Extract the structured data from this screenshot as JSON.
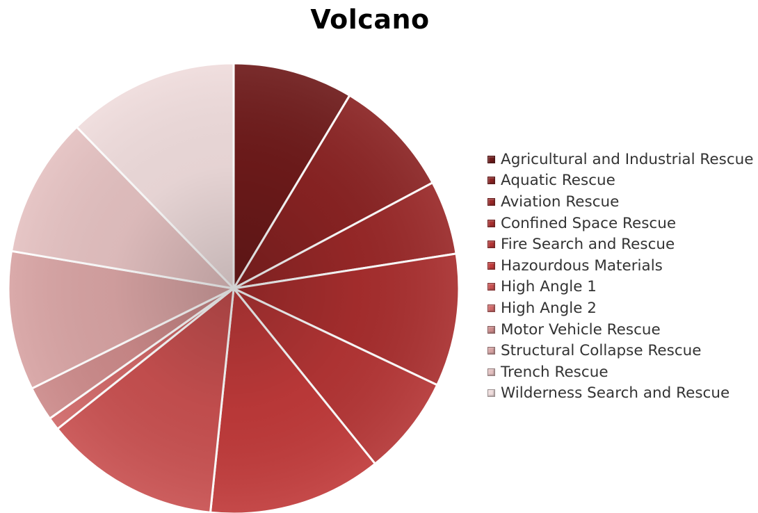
{
  "chart_data": {
    "type": "pie",
    "title": "Volcano",
    "categories": [
      "Agricultural and Industrial Rescue",
      "Aquatic Rescue",
      "Aviation Rescue",
      "Confined Space Rescue",
      "Fire Search and Rescue",
      "Hazourdous Materials",
      "High Angle 1",
      "High Angle 2",
      "Motor Vehicle Rescue",
      "Structural Collapse Rescue",
      "Trench Rescue",
      "Wilderness Search and Rescue"
    ],
    "values": [
      9.4,
      9.4,
      5.8,
      10.4,
      7.8,
      13.6,
      13.8,
      1.0,
      2.7,
      10.9,
      11.0,
      13.4
    ],
    "colors": [
      "#6e1a1a",
      "#8a2323",
      "#992828",
      "#a82e2e",
      "#b43535",
      "#c03a3a",
      "#c85050",
      "#d06868",
      "#cc8a8a",
      "#d7a3a3",
      "#e4c1c1",
      "#efdcdc"
    ],
    "legend_position": "right"
  }
}
